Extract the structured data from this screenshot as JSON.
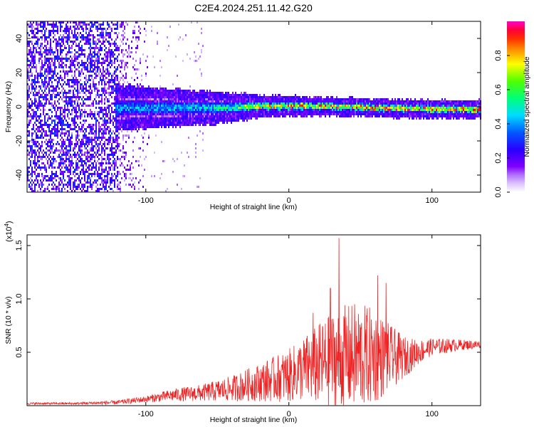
{
  "title": "C2E4.2024.251.11.42.G20",
  "chart_data": [
    {
      "type": "heatmap",
      "xlabel": "Height of straight line (km)",
      "ylabel": "Frequency (Hz)",
      "xlim": [
        -183,
        134
      ],
      "ylim": [
        -50,
        50
      ],
      "xticks": [
        -100,
        0,
        100
      ],
      "yticks": [
        -40,
        -20,
        0,
        20,
        40
      ],
      "grid": false,
      "description_of_field": "dense broadband noise for x < -120 km; narrow band centered near 0 Hz from -120 km onward, brightest (0.8-1.0) for x between -20 and 130 km",
      "band": [
        {
          "x": -120,
          "center_hz": 0,
          "halfwidth_hz": 6,
          "peak_amplitude": 0.45
        },
        {
          "x": -80,
          "center_hz": 0,
          "halfwidth_hz": 5,
          "peak_amplitude": 0.5
        },
        {
          "x": -40,
          "center_hz": 0,
          "halfwidth_hz": 4,
          "peak_amplitude": 0.6
        },
        {
          "x": -20,
          "center_hz": 1,
          "halfwidth_hz": 3,
          "peak_amplitude": 0.85
        },
        {
          "x": 20,
          "center_hz": 1,
          "halfwidth_hz": 2.5,
          "peak_amplitude": 0.95
        },
        {
          "x": 60,
          "center_hz": 0,
          "halfwidth_hz": 2.5,
          "peak_amplitude": 0.95
        },
        {
          "x": 100,
          "center_hz": -1,
          "halfwidth_hz": 2.5,
          "peak_amplitude": 0.95
        },
        {
          "x": 130,
          "center_hz": -1,
          "halfwidth_hz": 2.5,
          "peak_amplitude": 0.9
        }
      ]
    },
    {
      "type": "colorbar",
      "label": "Normalized spectral amplitude",
      "range": [
        0.0,
        1.0
      ],
      "ticks": [
        "0.0",
        "0.2",
        "0.4",
        "0.6",
        "0.8"
      ],
      "colormap": [
        "#ffffff",
        "#8000ff",
        "#0000ff",
        "#00ffff",
        "#00ff00",
        "#ffff00",
        "#ff8000",
        "#ff0000",
        "#ff00ff"
      ]
    },
    {
      "type": "line",
      "xlabel": "Height of straight line (km)",
      "ylabel": "SNR (10 * v/v)",
      "scale_label": "(x10",
      "scale_exponent": "4",
      "scale_suffix": ")",
      "xlim": [
        -183,
        134
      ],
      "ylim": [
        0,
        1.6
      ],
      "xticks": [
        -100,
        0,
        100
      ],
      "yticks": [
        "0.5",
        "1.0",
        "1.5"
      ],
      "ytick_values": [
        0.5,
        1.0,
        1.5
      ],
      "color": "#ee2222",
      "envelope": {
        "x": [
          -183,
          -150,
          -120,
          -100,
          -80,
          -60,
          -40,
          -20,
          0,
          10,
          20,
          30,
          40,
          50,
          60,
          70,
          80,
          90,
          100,
          110,
          120,
          134
        ],
        "mean": [
          0.02,
          0.02,
          0.03,
          0.06,
          0.1,
          0.12,
          0.16,
          0.22,
          0.28,
          0.34,
          0.38,
          0.42,
          0.45,
          0.46,
          0.46,
          0.45,
          0.45,
          0.5,
          0.55,
          0.56,
          0.57,
          0.57
        ],
        "amplitude": [
          0.01,
          0.01,
          0.02,
          0.03,
          0.06,
          0.08,
          0.12,
          0.18,
          0.25,
          0.3,
          0.38,
          0.45,
          0.5,
          0.5,
          0.45,
          0.32,
          0.2,
          0.12,
          0.08,
          0.07,
          0.05,
          0.04
        ]
      },
      "peaks": [
        {
          "x": 35,
          "y": 1.57
        },
        {
          "x": 29,
          "y": 1.1
        },
        {
          "x": 62,
          "y": 1.22
        },
        {
          "x": 68,
          "y": 1.15
        },
        {
          "x": 17,
          "y": 0.87
        },
        {
          "x": 46,
          "y": 0.95
        }
      ]
    }
  ]
}
